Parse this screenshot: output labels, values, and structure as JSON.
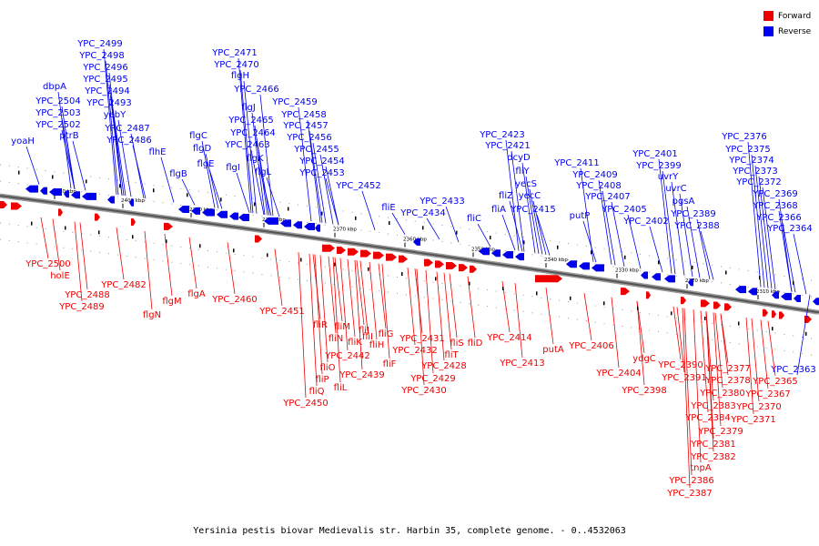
{
  "legend": {
    "forward_label": "Forward",
    "reverse_label": "Reverse",
    "forward_color": "#ee0000",
    "reverse_color": "#0000ee"
  },
  "caption": "Yersinia pestis biovar Medievalis str. Harbin 35, complete genome. - 0..4532063",
  "axis_ticks": [
    "2410 kbp",
    "2400 kbp",
    "2390 kbp",
    "2380 kbp",
    "2370 kbp",
    "2360 kbp",
    "2350 kbp",
    "2340 kbp",
    "2330 kbp",
    "2320 kbp",
    "2310 kbp"
  ],
  "reverse_genes": [
    "yoaH",
    "YPC_2504",
    "YPC_2503",
    "YPC_2502",
    "dbpA",
    "ptrB",
    "YPC_2499",
    "YPC_2498",
    "YPC_2496",
    "YPC_2495",
    "YPC_2494",
    "YPC_2493",
    "yebY",
    "YPC_2487",
    "YPC_2486",
    "flhE",
    "flgB",
    "flgC",
    "flgD",
    "flgE",
    "flgI",
    "flgH",
    "YPC_2471",
    "YPC_2470",
    "YPC_2466",
    "flgJ",
    "YPC_2465",
    "YPC_2464",
    "YPC_2463",
    "flgK",
    "flgL",
    "YPC_2459",
    "YPC_2458",
    "YPC_2457",
    "YPC_2456",
    "YPC_2455",
    "YPC_2454",
    "YPC_2453",
    "YPC_2452",
    "fliE",
    "YPC_2433",
    "YPC_2434",
    "fliC",
    "fliA",
    "fliZ",
    "YPC_2423",
    "YPC_2421",
    "dcyD",
    "fliY",
    "yecS",
    "yecC",
    "YPC_2415",
    "YPC_2411",
    "putP",
    "YPC_2409",
    "YPC_2408",
    "YPC_2407",
    "YPC_2405",
    "YPC_2402",
    "YPC_2401",
    "YPC_2399",
    "uvrY",
    "uvrC",
    "pgsA",
    "YPC_2389",
    "YPC_2388",
    "YPC_2376",
    "YPC_2375",
    "YPC_2374",
    "YPC_2373",
    "YPC_2372",
    "YPC_2369",
    "YPC_2368",
    "YPC_2366",
    "YPC_2364",
    "YPC_2363"
  ],
  "forward_genes": [
    "YPC_2500",
    "holE",
    "YPC_2488",
    "YPC_2489",
    "YPC_2482",
    "flgN",
    "flgM",
    "flgA",
    "YPC_2460",
    "YPC_2451",
    "fliR",
    "fliQ",
    "fliP",
    "fliO",
    "fliN",
    "fliM",
    "fliL",
    "fliK",
    "fliJ",
    "fliI",
    "fliH",
    "fliG",
    "fliF",
    "YPC_2442",
    "YPC_2439",
    "YPC_2450",
    "YPC_2431",
    "YPC_2432",
    "YPC_2428",
    "YPC_2429",
    "YPC_2430",
    "fliS",
    "fliT",
    "fliD",
    "YPC_2414",
    "YPC_2413",
    "putA",
    "YPC_2406",
    "YPC_2404",
    "ydgC",
    "YPC_2398",
    "YPC_2390",
    "YPC_2391",
    "YPC_2377",
    "YPC_2378",
    "YPC_2380",
    "YPC_2383",
    "YPC_2384",
    "YPC_2379",
    "YPC_2381",
    "YPC_2382",
    "tnpA",
    "YPC_2386",
    "YPC_2387",
    "YPC_2365",
    "YPC_2367",
    "YPC_2370",
    "YPC_2371"
  ]
}
